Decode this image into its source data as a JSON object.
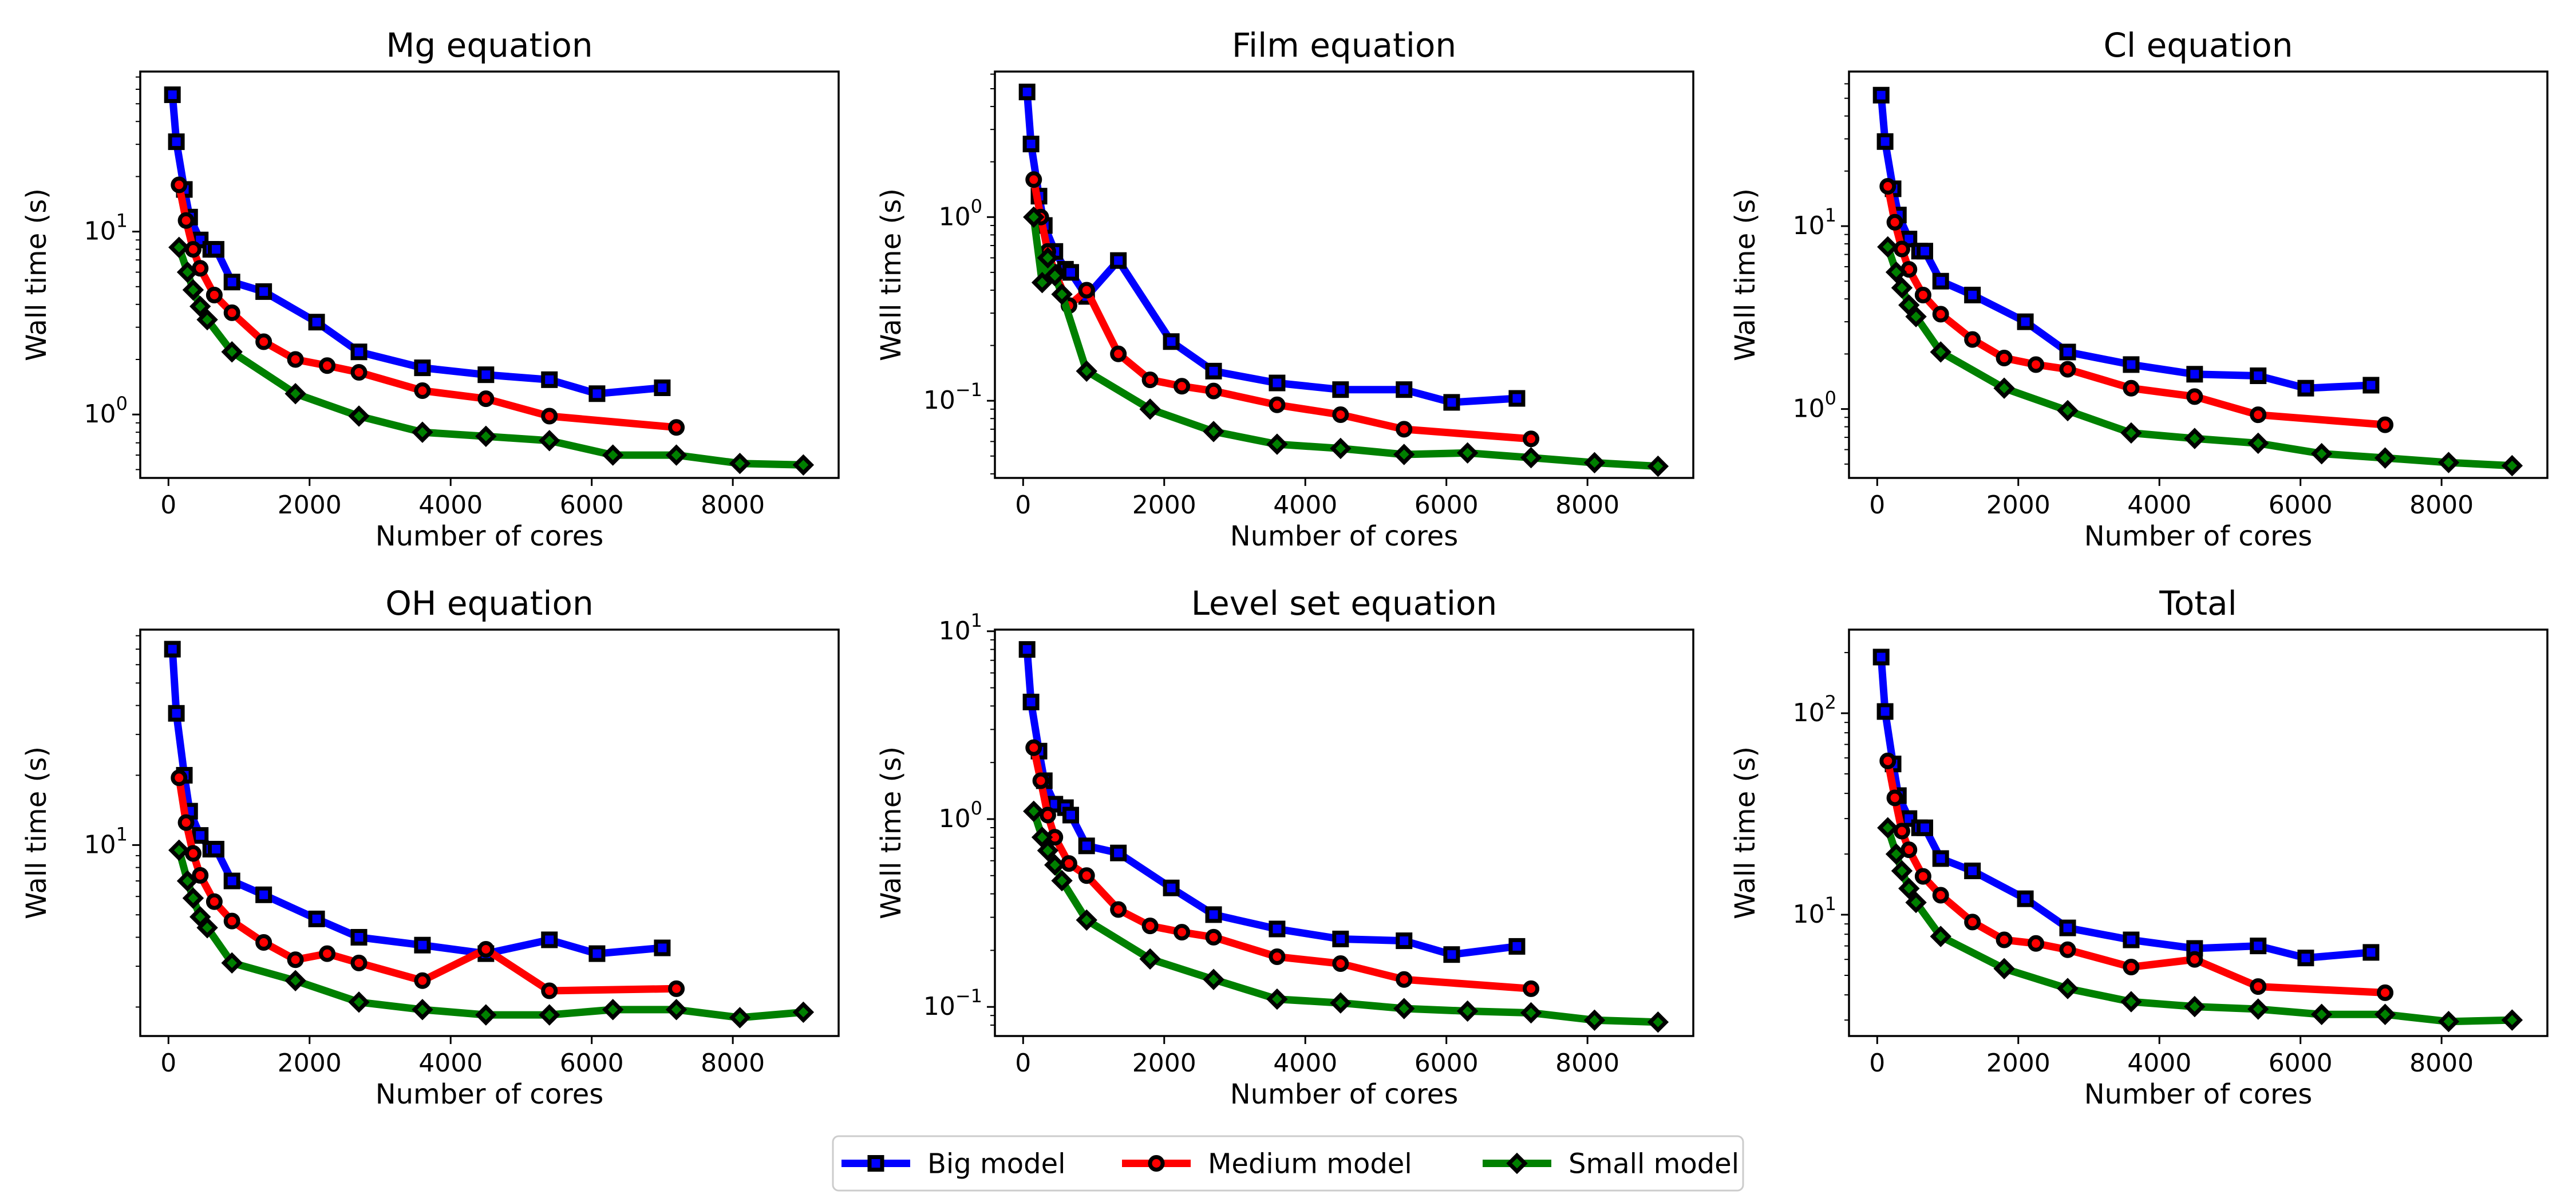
{
  "figure": {
    "legend": {
      "placement": "bottom-center",
      "entries": [
        {
          "name": "Big model",
          "color": "#0000ff",
          "marker": "square"
        },
        {
          "name": "Medium model",
          "color": "#ff0000",
          "marker": "circle"
        },
        {
          "name": "Small model",
          "color": "#008000",
          "marker": "diamond"
        }
      ]
    }
  },
  "chart_data": [
    {
      "type": "line",
      "title": "Mg equation",
      "xlabel": "Number of cores",
      "ylabel": "Wall time (s)",
      "yscale": "log",
      "xlim": [
        -400,
        9500
      ],
      "ylim": [
        0.45,
        75
      ],
      "xticks": [
        "0",
        "2000",
        "4000",
        "6000",
        "8000"
      ],
      "yticks": [
        {
          "value": 1,
          "label": "10",
          "exp": "0"
        },
        {
          "value": 10,
          "label": "10",
          "exp": "1"
        }
      ],
      "grid": false,
      "series": [
        {
          "name": "Big model",
          "x": [
            56,
            112,
            225,
            300,
            450,
            600,
            675,
            900,
            1350,
            2100,
            2700,
            3600,
            4500,
            5400,
            6075,
            7000
          ],
          "y": [
            56,
            31,
            17,
            12,
            9,
            8,
            8,
            5.3,
            4.7,
            3.2,
            2.2,
            1.8,
            1.65,
            1.55,
            1.3,
            1.4
          ]
        },
        {
          "name": "Medium model",
          "x": [
            150,
            250,
            350,
            450,
            650,
            900,
            1350,
            1800,
            2250,
            2700,
            3600,
            4500,
            5400,
            7200
          ],
          "y": [
            18,
            11.5,
            8,
            6.3,
            4.5,
            3.6,
            2.5,
            2.0,
            1.85,
            1.7,
            1.35,
            1.22,
            0.98,
            0.85
          ]
        },
        {
          "name": "Small model",
          "x": [
            150,
            270,
            350,
            450,
            550,
            900,
            1800,
            2700,
            3600,
            4500,
            5400,
            6300,
            7200,
            8100,
            9000
          ],
          "y": [
            8.2,
            6.0,
            4.8,
            3.9,
            3.3,
            2.2,
            1.3,
            0.98,
            0.8,
            0.76,
            0.72,
            0.6,
            0.6,
            0.54,
            0.53
          ]
        }
      ]
    },
    {
      "type": "line",
      "title": "Film equation",
      "xlabel": "Number of cores",
      "ylabel": "Wall time (s)",
      "yscale": "log",
      "xlim": [
        -400,
        9500
      ],
      "ylim": [
        0.038,
        6.2
      ],
      "xticks": [
        "0",
        "2000",
        "4000",
        "6000",
        "8000"
      ],
      "yticks": [
        {
          "value": 0.1,
          "label": "10",
          "exp": "−1"
        },
        {
          "value": 1,
          "label": "10",
          "exp": "0"
        }
      ],
      "grid": false,
      "series": [
        {
          "name": "Big model",
          "x": [
            56,
            112,
            225,
            300,
            450,
            600,
            675,
            900,
            1350,
            2100,
            2700,
            3600,
            4500,
            5400,
            6075,
            7000
          ],
          "y": [
            4.8,
            2.5,
            1.3,
            0.9,
            0.65,
            0.52,
            0.5,
            0.37,
            0.58,
            0.21,
            0.145,
            0.125,
            0.115,
            0.115,
            0.098,
            0.103
          ]
        },
        {
          "name": "Medium model",
          "x": [
            150,
            250,
            350,
            450,
            650,
            900,
            1350,
            1800,
            2250,
            2700,
            3600,
            4500,
            5400,
            7200
          ],
          "y": [
            1.6,
            1.0,
            0.65,
            0.5,
            0.33,
            0.4,
            0.18,
            0.13,
            0.12,
            0.113,
            0.095,
            0.084,
            0.07,
            0.062
          ]
        },
        {
          "name": "Small model",
          "x": [
            150,
            270,
            350,
            450,
            550,
            900,
            1800,
            2700,
            3600,
            4500,
            5400,
            6300,
            7200,
            8100,
            9000
          ],
          "y": [
            1.0,
            0.44,
            0.6,
            0.48,
            0.38,
            0.145,
            0.09,
            0.068,
            0.058,
            0.055,
            0.051,
            0.052,
            0.049,
            0.046,
            0.044
          ]
        }
      ]
    },
    {
      "type": "line",
      "title": "Cl equation",
      "xlabel": "Number of cores",
      "ylabel": "Wall time (s)",
      "yscale": "log",
      "xlim": [
        -400,
        9500
      ],
      "ylim": [
        0.42,
        70
      ],
      "xticks": [
        "0",
        "2000",
        "4000",
        "6000",
        "8000"
      ],
      "yticks": [
        {
          "value": 1,
          "label": "10",
          "exp": "0"
        },
        {
          "value": 10,
          "label": "10",
          "exp": "1"
        }
      ],
      "grid": false,
      "series": [
        {
          "name": "Big model",
          "x": [
            56,
            112,
            225,
            300,
            450,
            600,
            675,
            900,
            1350,
            2100,
            2700,
            3600,
            4500,
            5400,
            6075,
            7000
          ],
          "y": [
            52,
            29,
            16,
            11.5,
            8.5,
            7.3,
            7.3,
            5.0,
            4.2,
            3.0,
            2.05,
            1.75,
            1.55,
            1.52,
            1.3,
            1.35
          ]
        },
        {
          "name": "Medium model",
          "x": [
            150,
            250,
            350,
            450,
            650,
            900,
            1350,
            1800,
            2250,
            2700,
            3600,
            4500,
            5400,
            7200
          ],
          "y": [
            16.5,
            10.5,
            7.5,
            5.8,
            4.2,
            3.3,
            2.4,
            1.9,
            1.75,
            1.65,
            1.3,
            1.17,
            0.93,
            0.82
          ]
        },
        {
          "name": "Small model",
          "x": [
            150,
            270,
            350,
            450,
            550,
            900,
            1800,
            2700,
            3600,
            4500,
            5400,
            6300,
            7200,
            8100,
            9000
          ],
          "y": [
            7.7,
            5.6,
            4.6,
            3.7,
            3.2,
            2.05,
            1.3,
            0.98,
            0.74,
            0.69,
            0.65,
            0.57,
            0.54,
            0.51,
            0.49
          ]
        }
      ]
    },
    {
      "type": "line",
      "title": "OH equation",
      "xlabel": "Number of cores",
      "ylabel": "Wall time (s)",
      "yscale": "log",
      "xlim": [
        -400,
        9500
      ],
      "ylim": [
        1.5,
        85
      ],
      "xticks": [
        "0",
        "2000",
        "4000",
        "6000",
        "8000"
      ],
      "yticks": [
        {
          "value": 10,
          "label": "10",
          "exp": "1"
        }
      ],
      "grid": false,
      "series": [
        {
          "name": "Big model",
          "x": [
            56,
            112,
            225,
            300,
            450,
            600,
            675,
            900,
            1350,
            2100,
            2700,
            3600,
            4500,
            5400,
            6075,
            7000
          ],
          "y": [
            70,
            37,
            20,
            14,
            11,
            9.6,
            9.6,
            7.0,
            6.1,
            4.8,
            4.0,
            3.7,
            3.4,
            3.9,
            3.4,
            3.6
          ]
        },
        {
          "name": "Medium model",
          "x": [
            150,
            250,
            350,
            450,
            650,
            900,
            1350,
            1800,
            2250,
            2700,
            3600,
            4500,
            5400,
            7200
          ],
          "y": [
            19.5,
            12.5,
            9.2,
            7.4,
            5.7,
            4.7,
            3.8,
            3.2,
            3.4,
            3.1,
            2.6,
            3.55,
            2.35,
            2.4
          ]
        },
        {
          "name": "Small model",
          "x": [
            150,
            270,
            350,
            450,
            550,
            900,
            1800,
            2700,
            3600,
            4500,
            5400,
            6300,
            7200,
            8100,
            9000
          ],
          "y": [
            9.5,
            7.0,
            5.9,
            4.9,
            4.4,
            3.1,
            2.6,
            2.1,
            1.95,
            1.85,
            1.85,
            1.95,
            1.95,
            1.8,
            1.9
          ]
        }
      ]
    },
    {
      "type": "line",
      "title": "Level set equation",
      "xlabel": "Number of cores",
      "ylabel": "Wall time (s)",
      "yscale": "log",
      "xlim": [
        -400,
        9500
      ],
      "ylim": [
        0.07,
        10.2
      ],
      "xticks": [
        "0",
        "2000",
        "4000",
        "6000",
        "8000"
      ],
      "yticks": [
        {
          "value": 0.1,
          "label": "10",
          "exp": "−1"
        },
        {
          "value": 1,
          "label": "10",
          "exp": "0"
        },
        {
          "value": 10,
          "label": "10",
          "exp": "1"
        }
      ],
      "grid": false,
      "series": [
        {
          "name": "Big model",
          "x": [
            56,
            112,
            225,
            300,
            450,
            600,
            675,
            900,
            1350,
            2100,
            2700,
            3600,
            4500,
            5400,
            6075,
            7000
          ],
          "y": [
            8.0,
            4.2,
            2.3,
            1.6,
            1.2,
            1.15,
            1.05,
            0.72,
            0.66,
            0.43,
            0.31,
            0.26,
            0.23,
            0.225,
            0.19,
            0.21
          ]
        },
        {
          "name": "Medium model",
          "x": [
            150,
            250,
            350,
            450,
            650,
            900,
            1350,
            1800,
            2250,
            2700,
            3600,
            4500,
            5400,
            7200
          ],
          "y": [
            2.4,
            1.6,
            1.05,
            0.8,
            0.58,
            0.5,
            0.33,
            0.27,
            0.25,
            0.235,
            0.185,
            0.17,
            0.14,
            0.125
          ]
        },
        {
          "name": "Small model",
          "x": [
            150,
            270,
            350,
            450,
            550,
            900,
            1800,
            2700,
            3600,
            4500,
            5400,
            6300,
            7200,
            8100,
            9000
          ],
          "y": [
            1.1,
            0.8,
            0.68,
            0.57,
            0.47,
            0.29,
            0.18,
            0.14,
            0.11,
            0.105,
            0.098,
            0.095,
            0.093,
            0.085,
            0.083
          ]
        }
      ]
    },
    {
      "type": "line",
      "title": "Total",
      "xlabel": "Number of cores",
      "ylabel": "Wall time (s)",
      "yscale": "log",
      "xlim": [
        -400,
        9500
      ],
      "ylim": [
        2.5,
        260
      ],
      "xticks": [
        "0",
        "2000",
        "4000",
        "6000",
        "8000"
      ],
      "yticks": [
        {
          "value": 10,
          "label": "10",
          "exp": "1"
        },
        {
          "value": 100,
          "label": "10",
          "exp": "2"
        }
      ],
      "grid": false,
      "series": [
        {
          "name": "Big model",
          "x": [
            56,
            112,
            225,
            300,
            450,
            600,
            675,
            900,
            1350,
            2100,
            2700,
            3600,
            4500,
            5400,
            6075,
            7000
          ],
          "y": [
            190,
            102,
            56,
            39,
            30,
            27,
            27,
            19,
            16.5,
            12,
            8.6,
            7.5,
            6.8,
            7.0,
            6.1,
            6.5
          ]
        },
        {
          "name": "Medium model",
          "x": [
            150,
            250,
            350,
            450,
            650,
            900,
            1350,
            1800,
            2250,
            2700,
            3600,
            4500,
            5400,
            7200
          ],
          "y": [
            58,
            38,
            26,
            21,
            15.5,
            12.5,
            9.2,
            7.5,
            7.2,
            6.7,
            5.5,
            6.0,
            4.4,
            4.1
          ]
        },
        {
          "name": "Small model",
          "x": [
            150,
            270,
            350,
            450,
            550,
            900,
            1800,
            2700,
            3600,
            4500,
            5400,
            6300,
            7200,
            8100,
            9000
          ],
          "y": [
            27,
            20,
            16.5,
            13.5,
            11.5,
            7.8,
            5.4,
            4.3,
            3.7,
            3.5,
            3.4,
            3.2,
            3.2,
            2.95,
            3.0
          ]
        }
      ]
    }
  ]
}
